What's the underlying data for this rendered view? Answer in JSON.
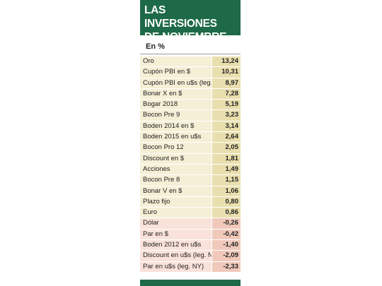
{
  "header": {
    "title_lines": [
      "LAS INVERSIONES",
      "DE NOVIEMBRE"
    ],
    "subtitle": "En %"
  },
  "table": {
    "rows": [
      [
        "Oro",
        "13,24"
      ],
      [
        "Cupón PBI en $",
        "10,31"
      ],
      [
        "Cupón PBI en u$s (leg. NY)",
        "8,97"
      ],
      [
        "Bonar X en $",
        "7,28"
      ],
      [
        "Bogar 2018",
        "5,19"
      ],
      [
        "Bocon Pre 9",
        "3,23"
      ],
      [
        "Boden 2014 en $",
        "3,14"
      ],
      [
        "Boden 2015 en u$s",
        "2,64"
      ],
      [
        "Bocon Pro 12",
        "2,05"
      ],
      [
        "Discount en $",
        "1,81"
      ],
      [
        "Acciones",
        "1,49"
      ],
      [
        "Bocon Pre 8",
        "1,15"
      ],
      [
        "Bonar V en $",
        "1,06"
      ],
      [
        "Plazo fijo",
        "0,80"
      ],
      [
        "Euro",
        "0,86"
      ],
      [
        "Dólar",
        "-0,26"
      ],
      [
        "Par en $",
        "-0,42"
      ],
      [
        "Boden 2012 en u$s",
        "-1,40"
      ],
      [
        "Discount en u$s (leg. NY)",
        "-2,09"
      ],
      [
        "Par en u$s (leg. NY)",
        "-2,33"
      ]
    ]
  }
}
